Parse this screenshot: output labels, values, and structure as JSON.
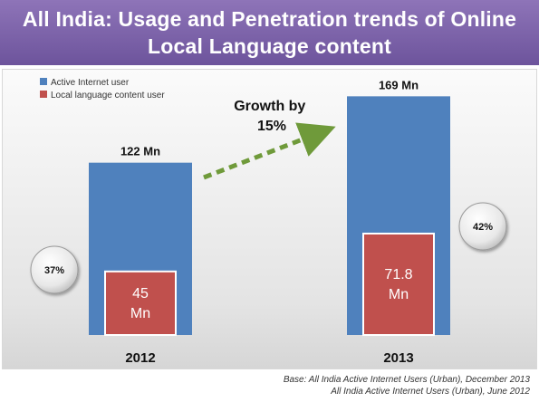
{
  "header": {
    "title": "All India: Usage and Penetration trends of Online Local Language content"
  },
  "chart_data": {
    "type": "bar",
    "categories": [
      "2012",
      "2013"
    ],
    "series": [
      {
        "name": "Active Internet user",
        "values": [
          122,
          169
        ],
        "labels": [
          "122 Mn",
          "169 Mn"
        ],
        "color": "#4f81bd"
      },
      {
        "name": "Local language content user",
        "values": [
          45,
          71.8
        ],
        "labels": [
          "45 Mn",
          "71.8 Mn"
        ],
        "color": "#c0504d"
      }
    ],
    "penetration": [
      "37%",
      "42%"
    ],
    "annotation": "Growth by 15%",
    "ylim": [
      0,
      200
    ],
    "legend": "top-left",
    "grid": false
  },
  "footer": {
    "line1": "Base: All India Active Internet Users (Urban), December 2013",
    "line2": "All India Active Internet Users (Urban), June  2012"
  }
}
